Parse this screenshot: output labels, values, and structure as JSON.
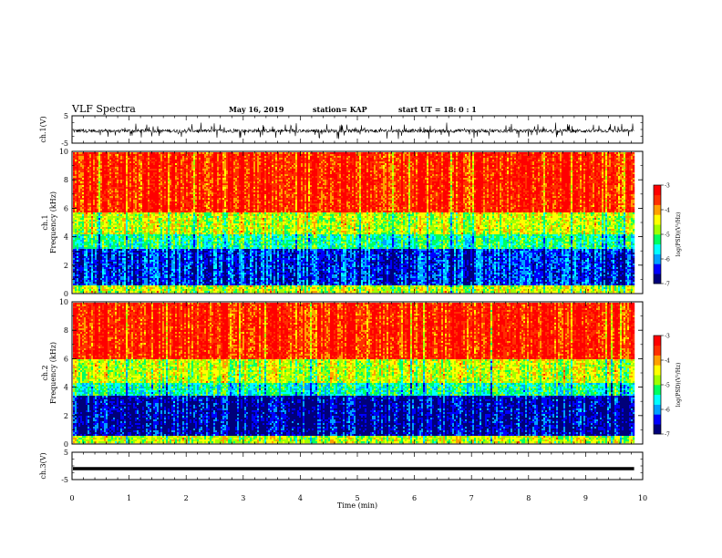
{
  "header": {
    "title": "VLF Spectra",
    "date": "May 16, 2019",
    "station": "station= KAP",
    "start": "start  UT =   18: 0  : 1"
  },
  "colors": {
    "spectrogram_scale": [
      "#00007a",
      "#0000ff",
      "#00a0ff",
      "#00ffff",
      "#00ff60",
      "#a0ff00",
      "#ffff00",
      "#ffa000",
      "#ff3000",
      "#ff0000"
    ],
    "trace": "#000000",
    "axes": "#000000"
  },
  "chart_data": [
    {
      "type": "line",
      "name": "ch1_voltage",
      "ylabel": "ch.1(V)",
      "ylim": [
        -5,
        5
      ],
      "yticks": [
        "5",
        "-5"
      ],
      "xlim": [
        0,
        10
      ],
      "description_range": [
        -3.5,
        2.5
      ]
    },
    {
      "type": "heatmap",
      "name": "ch1_spectrogram",
      "ylabel_line1": "ch.1",
      "ylabel_line2": "Frequency  (kHz)",
      "ylim": [
        0,
        10
      ],
      "yticks": [
        "0",
        "2",
        "4",
        "6",
        "8",
        "10"
      ],
      "xlim": [
        0,
        9.85
      ],
      "colorbar": {
        "label": "log(PSD)(V²/Hz)",
        "range": [
          -7,
          -3
        ],
        "ticks": [
          "-3",
          "-4",
          "-5",
          "-6",
          "-7"
        ]
      },
      "bands": [
        {
          "from": 0.0,
          "to": 0.6,
          "level": -4.6
        },
        {
          "from": 0.6,
          "to": 3.2,
          "level": -6.3
        },
        {
          "from": 3.2,
          "to": 4.2,
          "level": -5.3
        },
        {
          "from": 4.2,
          "to": 5.8,
          "level": -4.6
        },
        {
          "from": 5.8,
          "to": 10.0,
          "level": -3.4
        }
      ]
    },
    {
      "type": "heatmap",
      "name": "ch2_spectrogram",
      "ylabel_line1": "ch.2",
      "ylabel_line2": "Frequency  (kHz)",
      "ylim": [
        0,
        10
      ],
      "yticks": [
        "0",
        "2",
        "4",
        "6",
        "8",
        "10"
      ],
      "xlim": [
        0,
        9.85
      ],
      "colorbar": {
        "label": "log(PSD)(V²/Hz)",
        "range": [
          -7,
          -3
        ],
        "ticks": [
          "-3",
          "-4",
          "-5",
          "-6",
          "-7"
        ]
      },
      "bands": [
        {
          "from": 0.0,
          "to": 0.6,
          "level": -4.6
        },
        {
          "from": 0.6,
          "to": 3.4,
          "level": -6.6
        },
        {
          "from": 3.4,
          "to": 4.4,
          "level": -5.4
        },
        {
          "from": 4.4,
          "to": 6.0,
          "level": -4.6
        },
        {
          "from": 6.0,
          "to": 10.0,
          "level": -3.4
        }
      ]
    },
    {
      "type": "line",
      "name": "ch3_voltage",
      "ylabel": "ch.3(V)",
      "ylim": [
        -5,
        5
      ],
      "yticks": [
        "5",
        "-5"
      ],
      "xlim": [
        0,
        10
      ],
      "constant_value": -1.0
    }
  ],
  "xaxis": {
    "label": "Time  (min)",
    "ticks": [
      "0",
      "1",
      "2",
      "3",
      "4",
      "5",
      "6",
      "7",
      "8",
      "9",
      "10"
    ]
  }
}
